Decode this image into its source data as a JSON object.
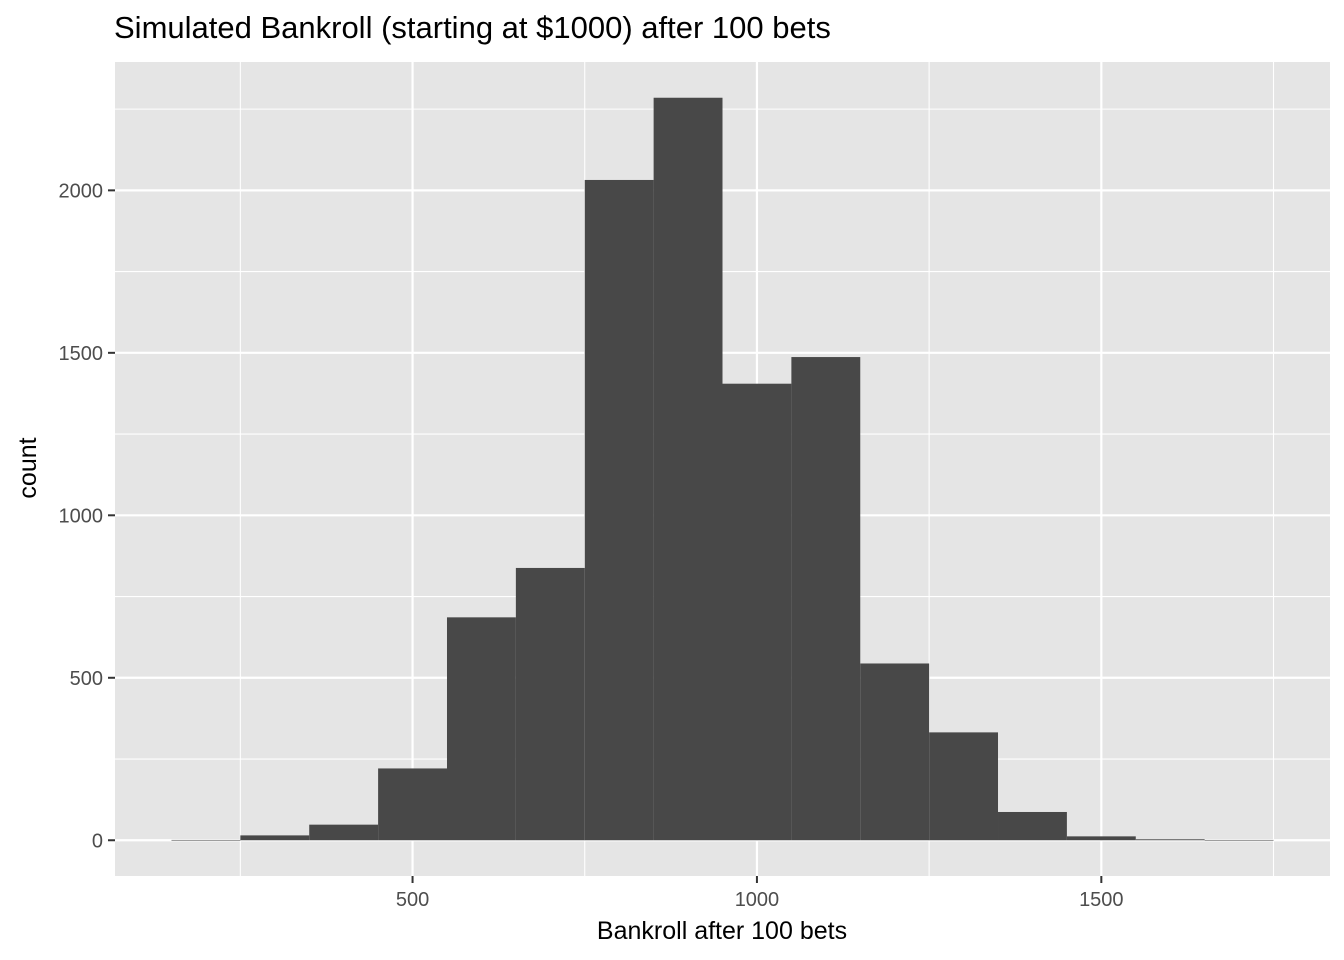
{
  "chart_data": {
    "type": "bar",
    "title": "Simulated Bankroll (starting at $1000) after 100 bets",
    "xlabel": "Bankroll after 100 bets",
    "ylabel": "count",
    "bin_width": 100,
    "bins": [
      {
        "start": 150,
        "end": 250,
        "count": 1
      },
      {
        "start": 250,
        "end": 350,
        "count": 15
      },
      {
        "start": 350,
        "end": 450,
        "count": 48
      },
      {
        "start": 450,
        "end": 550,
        "count": 221
      },
      {
        "start": 550,
        "end": 650,
        "count": 686
      },
      {
        "start": 650,
        "end": 750,
        "count": 838
      },
      {
        "start": 750,
        "end": 850,
        "count": 2032
      },
      {
        "start": 850,
        "end": 950,
        "count": 2285
      },
      {
        "start": 950,
        "end": 1050,
        "count": 1405
      },
      {
        "start": 1050,
        "end": 1150,
        "count": 1487
      },
      {
        "start": 1150,
        "end": 1250,
        "count": 544
      },
      {
        "start": 1250,
        "end": 1350,
        "count": 332
      },
      {
        "start": 1350,
        "end": 1450,
        "count": 87
      },
      {
        "start": 1450,
        "end": 1550,
        "count": 12
      },
      {
        "start": 1550,
        "end": 1650,
        "count": 3
      },
      {
        "start": 1650,
        "end": 1750,
        "count": 1
      }
    ],
    "x_ticks": [
      500,
      1000,
      1500
    ],
    "x_minor_ticks": [
      250,
      750,
      1250,
      1750
    ],
    "y_ticks": [
      0,
      500,
      1000,
      1500,
      2000
    ],
    "y_minor_ticks": [
      250,
      750,
      1250,
      1750,
      2250
    ],
    "xlim": [
      68,
      1832
    ],
    "ylim": [
      -110,
      2395
    ],
    "grid": true,
    "colors": {
      "panel_background": "#e5e5e5",
      "grid_line": "#ffffff",
      "bar_fill": "#484848",
      "tick_label": "#4d4d4d",
      "tick_mark": "#333333"
    }
  }
}
